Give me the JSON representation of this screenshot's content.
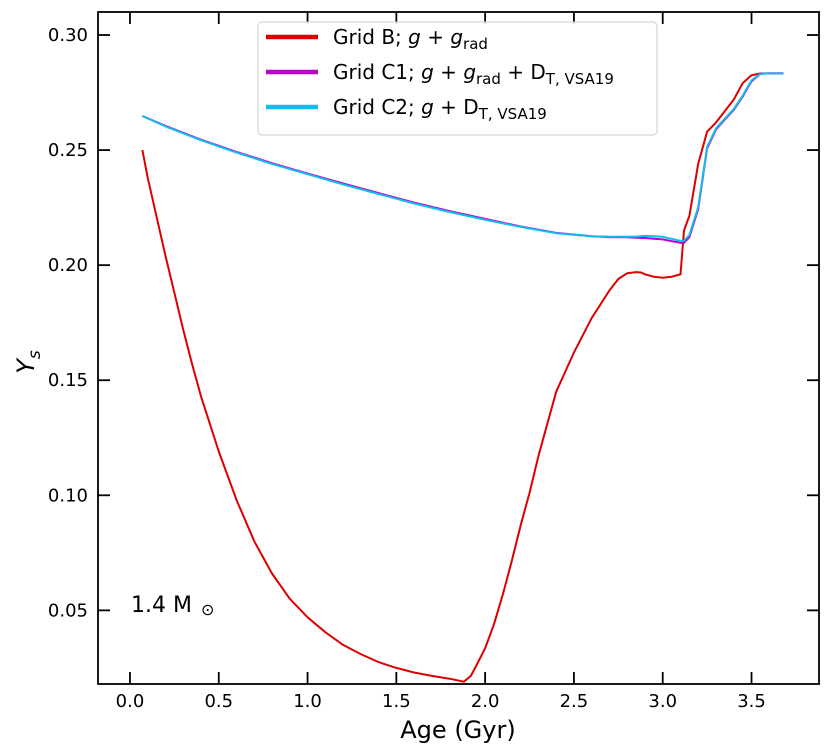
{
  "chart_data": {
    "type": "line",
    "title": "",
    "xlabel": "Age (Gyr)",
    "ylabel_main": "Y",
    "ylabel_sub": "s",
    "xlim": [
      -0.18,
      3.88
    ],
    "ylim": [
      0.018,
      0.31
    ],
    "xticks": [
      0.0,
      0.5,
      1.0,
      1.5,
      2.0,
      2.5,
      3.0,
      3.5
    ],
    "xtick_labels": [
      "0.0",
      "0.5",
      "1.0",
      "1.5",
      "2.0",
      "2.5",
      "3.0",
      "3.5"
    ],
    "yticks": [
      0.05,
      0.1,
      0.15,
      0.2,
      0.25,
      0.3
    ],
    "ytick_labels": [
      "0.05",
      "0.10",
      "0.15",
      "0.20",
      "0.25",
      "0.30"
    ],
    "annotation": {
      "text": "1.4 M",
      "symbol": "⊙",
      "x": 0.0,
      "y": 0.052
    },
    "legend": {
      "placement": "top-center",
      "entries": [
        {
          "series": 0,
          "parts": [
            {
              "t": "Grid B; ",
              "s": "n"
            },
            {
              "t": "g",
              "s": "i"
            },
            {
              "t": " + ",
              "s": "n"
            },
            {
              "t": "g",
              "s": "i"
            },
            {
              "t": "rad",
              "s": "sub"
            }
          ]
        },
        {
          "series": 1,
          "parts": [
            {
              "t": "Grid C1; ",
              "s": "n"
            },
            {
              "t": "g",
              "s": "i"
            },
            {
              "t": " + ",
              "s": "n"
            },
            {
              "t": "g",
              "s": "i"
            },
            {
              "t": "rad",
              "s": "sub"
            },
            {
              "t": " + D",
              "s": "n"
            },
            {
              "t": "T, VSA19",
              "s": "sub"
            }
          ]
        },
        {
          "series": 2,
          "parts": [
            {
              "t": "Grid C2; ",
              "s": "n"
            },
            {
              "t": "g",
              "s": "i"
            },
            {
              "t": " + D",
              "s": "n"
            },
            {
              "t": "T, VSA19",
              "s": "sub"
            }
          ]
        }
      ]
    },
    "series": [
      {
        "name": "Grid B; g + g_rad",
        "color": "#dd0000",
        "x": [
          0.07,
          0.1,
          0.15,
          0.2,
          0.25,
          0.3,
          0.35,
          0.4,
          0.5,
          0.6,
          0.7,
          0.8,
          0.9,
          1.0,
          1.1,
          1.2,
          1.3,
          1.4,
          1.5,
          1.6,
          1.7,
          1.8,
          1.88,
          1.92,
          1.95,
          2.0,
          2.05,
          2.1,
          2.15,
          2.2,
          2.25,
          2.3,
          2.35,
          2.4,
          2.5,
          2.6,
          2.7,
          2.75,
          2.8,
          2.85,
          2.88,
          2.9,
          2.95,
          3.0,
          3.05,
          3.1,
          3.12,
          3.15,
          3.2,
          3.25,
          3.3,
          3.35,
          3.4,
          3.45,
          3.5,
          3.55,
          3.6,
          3.65,
          3.68
        ],
        "y": [
          0.25,
          0.238,
          0.221,
          0.204,
          0.188,
          0.172,
          0.157,
          0.143,
          0.119,
          0.098,
          0.08,
          0.066,
          0.055,
          0.047,
          0.0405,
          0.035,
          0.031,
          0.0275,
          0.025,
          0.023,
          0.0215,
          0.0203,
          0.019,
          0.0215,
          0.026,
          0.0335,
          0.044,
          0.057,
          0.0715,
          0.087,
          0.101,
          0.117,
          0.131,
          0.145,
          0.162,
          0.177,
          0.189,
          0.194,
          0.1965,
          0.197,
          0.1968,
          0.196,
          0.195,
          0.1945,
          0.195,
          0.196,
          0.215,
          0.2215,
          0.244,
          0.258,
          0.262,
          0.267,
          0.272,
          0.279,
          0.2825,
          0.2833,
          0.2833,
          0.2833,
          0.2833
        ]
      },
      {
        "name": "Grid C1; g + g_rad + D_T,VSA19",
        "color": "#bb00cc",
        "x": [
          0.07,
          0.2,
          0.4,
          0.6,
          0.8,
          1.0,
          1.2,
          1.4,
          1.6,
          1.8,
          2.0,
          2.2,
          2.4,
          2.6,
          2.7,
          2.8,
          2.85,
          2.9,
          2.95,
          3.0,
          3.05,
          3.1,
          3.12,
          3.15,
          3.2,
          3.25,
          3.3,
          3.35,
          3.4,
          3.45,
          3.5,
          3.55,
          3.6,
          3.65,
          3.68
        ],
        "y": [
          0.2648,
          0.2605,
          0.2545,
          0.2492,
          0.2443,
          0.2398,
          0.2355,
          0.2313,
          0.2272,
          0.2235,
          0.2201,
          0.2168,
          0.214,
          0.2126,
          0.2122,
          0.2121,
          0.2119,
          0.2118,
          0.2115,
          0.2112,
          0.2104,
          0.2097,
          0.2097,
          0.2122,
          0.2244,
          0.2507,
          0.259,
          0.2633,
          0.2675,
          0.2732,
          0.2799,
          0.2831,
          0.2833,
          0.2833,
          0.2833
        ]
      },
      {
        "name": "Grid C2; g + D_T,VSA19",
        "color": "#11bbee",
        "x": [
          0.07,
          0.2,
          0.4,
          0.6,
          0.8,
          1.0,
          1.2,
          1.4,
          1.6,
          1.8,
          2.0,
          2.2,
          2.4,
          2.6,
          2.7,
          2.8,
          2.85,
          2.9,
          2.95,
          3.0,
          3.05,
          3.1,
          3.12,
          3.15,
          3.2,
          3.25,
          3.3,
          3.35,
          3.4,
          3.45,
          3.5,
          3.55,
          3.6,
          3.65,
          3.68
        ],
        "y": [
          0.2648,
          0.2603,
          0.2543,
          0.2489,
          0.244,
          0.2395,
          0.2351,
          0.2309,
          0.2268,
          0.2231,
          0.2197,
          0.2166,
          0.2139,
          0.2126,
          0.2123,
          0.2123,
          0.2124,
          0.2127,
          0.2126,
          0.2123,
          0.2114,
          0.2106,
          0.2106,
          0.2131,
          0.2252,
          0.2513,
          0.2594,
          0.2637,
          0.2679,
          0.2736,
          0.2803,
          0.2832,
          0.2833,
          0.2833,
          0.2833
        ]
      }
    ]
  }
}
